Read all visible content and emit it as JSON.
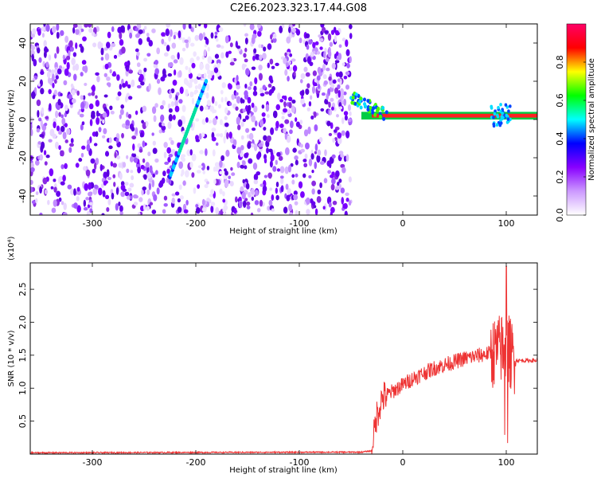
{
  "figure": {
    "title": "C2E6.2023.323.17.44.G08"
  },
  "chart_data": [
    {
      "type": "heatmap",
      "title": "C2E6.2023.323.17.44.G08",
      "xlabel": "Height of straight line (km)",
      "ylabel": "Frequency (Hz)",
      "xlim": [
        -360,
        130
      ],
      "ylim": [
        -50,
        50
      ],
      "x_ticks": [
        -300,
        -200,
        -100,
        0,
        100
      ],
      "y_ticks": [
        -40,
        -20,
        0,
        20,
        40
      ],
      "colorbar": {
        "label": "Normalized spectral amplitude",
        "range": [
          0.0,
          1.0
        ],
        "ticks": [
          0.0,
          0.2,
          0.4,
          0.6,
          0.8
        ],
        "colors": [
          "#ffffff",
          "#cc99ff",
          "#8800ff",
          "#0000ff",
          "#00ffff",
          "#00ff00",
          "#ffff00",
          "#ff0000",
          "#ff0066"
        ]
      },
      "features": {
        "noise_region_x": [
          -360,
          -50
        ],
        "signal_ridge_x": [
          -225,
          -190
        ],
        "signal_ridge_freq": [
          -30,
          20
        ],
        "carrier_x": [
          -50,
          130
        ],
        "carrier_freq": 2
      }
    },
    {
      "type": "line",
      "xlabel": "Height of straight line (km)",
      "ylabel": "SNR (10 * v/v)",
      "multiplier": "(x10⁴)",
      "xlim": [
        -360,
        130
      ],
      "ylim": [
        0,
        2.9
      ],
      "x_ticks": [
        -300,
        -200,
        -100,
        0,
        100
      ],
      "y_ticks": [
        0.5,
        1.0,
        1.5,
        2.0,
        2.5
      ],
      "line_color": "#ee3333",
      "anchors_x": [
        -360,
        -40,
        -30,
        -25,
        -20,
        -10,
        0,
        10,
        30,
        50,
        60,
        75,
        90,
        95,
        100,
        105,
        110,
        130
      ],
      "anchors_y": [
        0.02,
        0.03,
        0.05,
        0.6,
        0.85,
        0.95,
        1.05,
        1.15,
        1.3,
        1.4,
        1.45,
        1.5,
        1.55,
        1.6,
        1.65,
        1.5,
        1.42,
        1.42
      ],
      "peak": {
        "x": 100,
        "y": 2.85
      }
    }
  ]
}
